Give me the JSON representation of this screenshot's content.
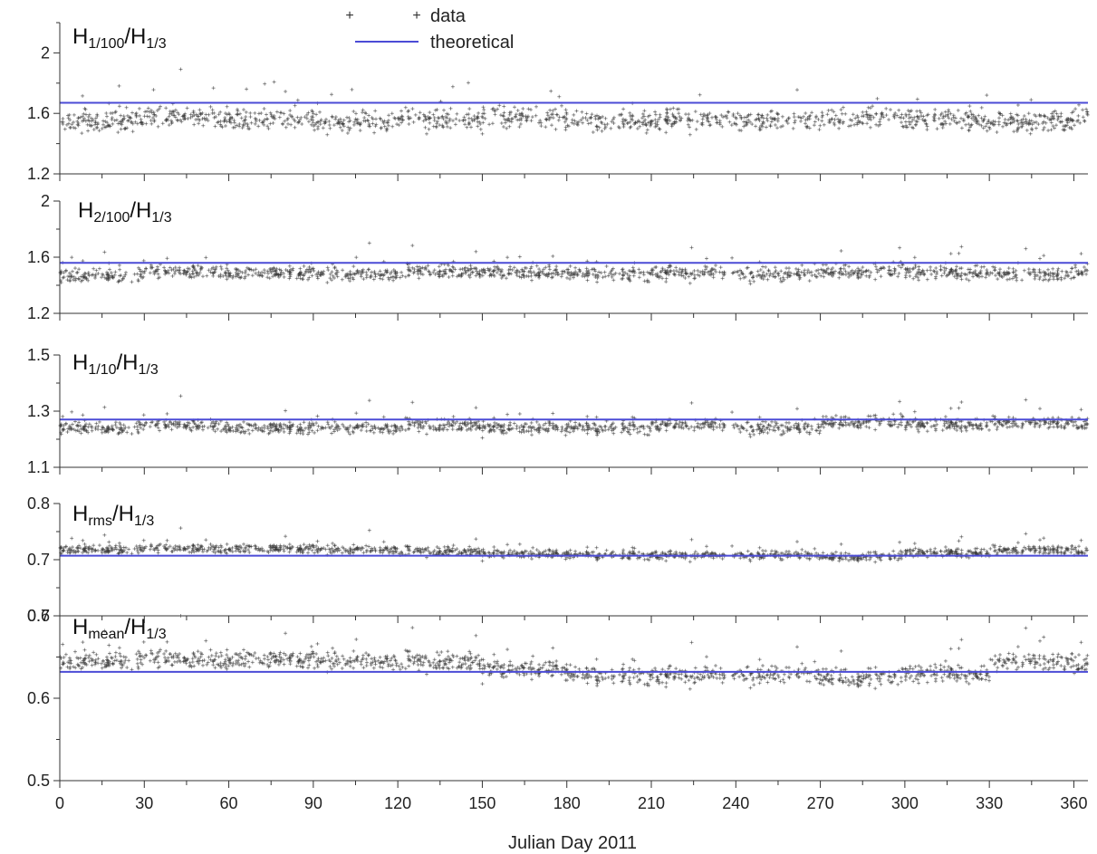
{
  "colors": {
    "data": "#3a3a3a",
    "theoretical": "#4b4bd6",
    "axis": "#333333"
  },
  "legend": {
    "placement": "top-center",
    "entries": [
      {
        "label": "data",
        "marker": "plus"
      },
      {
        "label": "theoretical",
        "marker": "line"
      }
    ]
  },
  "chart_data": [
    {
      "type": "scatter",
      "title_main": "H",
      "title_sub1": "1/100",
      "title_mid": "/H",
      "title_sub2": "1/3",
      "xlim": [
        0,
        365
      ],
      "ylim": [
        1.2,
        2.2
      ],
      "yticks": [
        1.2,
        1.6,
        2
      ],
      "ytick_labels": [
        "1.2",
        "1.6",
        "2"
      ],
      "theoretical": 1.67,
      "data_center": [
        1.55,
        1.58,
        1.56,
        1.54,
        1.56,
        1.57,
        1.55,
        1.56,
        1.55,
        1.57,
        1.56,
        1.55,
        1.58
      ],
      "data_spread": 0.12
    },
    {
      "type": "scatter",
      "title_main": "H",
      "title_sub1": "2/100",
      "title_mid": "/H",
      "title_sub2": "1/3",
      "xlim": [
        0,
        365
      ],
      "ylim": [
        1.2,
        2.0
      ],
      "yticks": [
        1.2,
        1.6,
        2
      ],
      "ytick_labels": [
        "1.2",
        "1.6",
        "2"
      ],
      "theoretical": 1.56,
      "data_center": [
        1.47,
        1.5,
        1.49,
        1.48,
        1.5,
        1.49,
        1.48,
        1.49,
        1.48,
        1.5,
        1.49,
        1.48,
        1.5
      ],
      "data_spread": 0.09
    },
    {
      "type": "scatter",
      "title_main": "H",
      "title_sub1": "1/10",
      "title_mid": "/H",
      "title_sub2": "1/3",
      "xlim": [
        0,
        365
      ],
      "ylim": [
        1.1,
        1.5
      ],
      "yticks": [
        1.1,
        1.3,
        1.5
      ],
      "ytick_labels": [
        "1.1",
        "1.3",
        "1.5"
      ],
      "theoretical": 1.27,
      "data_center": [
        1.24,
        1.25,
        1.24,
        1.24,
        1.25,
        1.24,
        1.24,
        1.25,
        1.24,
        1.26,
        1.25,
        1.26,
        1.25
      ],
      "data_spread": 0.04
    },
    {
      "type": "scatter",
      "title_main": "H",
      "title_sub1": "rms",
      "title_mid": "/H",
      "title_sub2": "1/3",
      "xlim": [
        0,
        365
      ],
      "ylim": [
        0.6,
        0.8
      ],
      "yticks": [
        0.6,
        0.7,
        0.8
      ],
      "ytick_labels": [
        "0.6",
        "0.7",
        "0.8"
      ],
      "theoretical": 0.707,
      "data_center": [
        0.718,
        0.72,
        0.72,
        0.718,
        0.715,
        0.71,
        0.708,
        0.708,
        0.708,
        0.705,
        0.712,
        0.718,
        0.715
      ],
      "data_spread": 0.014
    },
    {
      "type": "scatter",
      "title_main": "H",
      "title_sub1": "mean",
      "title_mid": "/H",
      "title_sub2": "1/3",
      "xlim": [
        0,
        365
      ],
      "ylim": [
        0.5,
        0.7
      ],
      "yticks": [
        0.5,
        0.6,
        0.7
      ],
      "ytick_labels": [
        "0.5",
        "0.6",
        "0.7"
      ],
      "theoretical": 0.632,
      "data_center": [
        0.645,
        0.648,
        0.648,
        0.645,
        0.645,
        0.635,
        0.628,
        0.628,
        0.628,
        0.625,
        0.63,
        0.645,
        0.64
      ],
      "data_spread": 0.02
    }
  ],
  "xaxis": {
    "label": "Julian Day 2011",
    "ticks": [
      0,
      30,
      60,
      90,
      120,
      150,
      180,
      210,
      240,
      270,
      300,
      330,
      360
    ],
    "tick_labels": [
      "0",
      "30",
      "60",
      "90",
      "120",
      "150",
      "180",
      "210",
      "240",
      "270",
      "300",
      "330",
      "360"
    ]
  }
}
